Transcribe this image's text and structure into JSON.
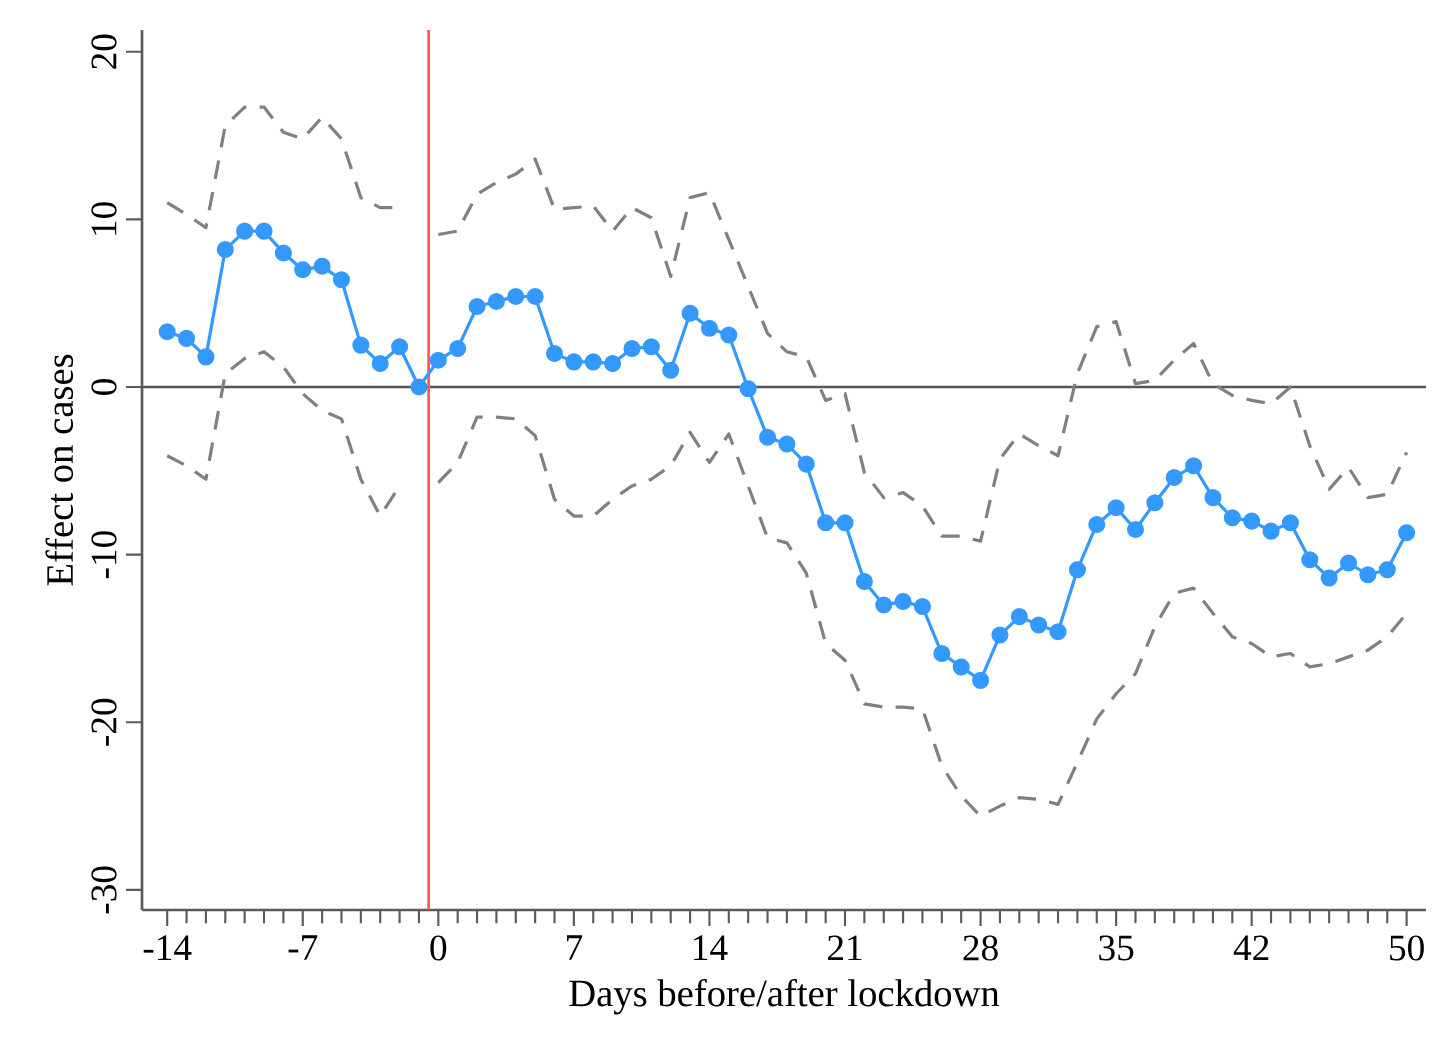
{
  "chart_data": {
    "type": "line",
    "xlabel": "Days before/after lockdown",
    "ylabel": "Effect on cases",
    "x": [
      -14,
      -13,
      -12,
      -11,
      -10,
      -9,
      -8,
      -7,
      -6,
      -5,
      -4,
      -3,
      -2,
      -1,
      0,
      1,
      2,
      3,
      4,
      5,
      6,
      7,
      8,
      9,
      10,
      11,
      12,
      13,
      14,
      15,
      16,
      17,
      18,
      19,
      20,
      21,
      22,
      23,
      24,
      25,
      26,
      27,
      28,
      29,
      30,
      31,
      32,
      33,
      34,
      35,
      36,
      37,
      38,
      39,
      40,
      41,
      42,
      43,
      44,
      45,
      46,
      47,
      48,
      49,
      50
    ],
    "series": [
      {
        "color": "#808080",
        "marker": "none",
        "line_style": "dashed",
        "values": [
          11.0,
          10.3,
          9.5,
          15.6,
          16.7,
          16.7,
          15.2,
          14.8,
          16.1,
          14.8,
          11.3,
          10.7,
          10.7,
          null,
          9.1,
          9.3,
          11.5,
          12.2,
          12.7,
          13.6,
          10.6,
          10.7,
          10.8,
          9.3,
          10.7,
          10.1,
          6.6,
          11.3,
          11.6,
          8.8,
          6.0,
          3.2,
          2.1,
          1.8,
          -0.8,
          -0.4,
          -5.1,
          -6.6,
          -6.3,
          -7.1,
          -8.9,
          -8.9,
          -9.2,
          -4.3,
          -2.8,
          -3.5,
          -4.1,
          0.8,
          3.6,
          3.9,
          0.2,
          0.4,
          1.6,
          2.6,
          0.2,
          -0.5,
          -0.8,
          -1.0,
          0.0,
          -3.5,
          -6.1,
          -4.8,
          -6.6,
          -6.4,
          -3.9
        ]
      },
      {
        "color": "#808080",
        "marker": "none",
        "line_style": "dashed",
        "values": [
          -4.1,
          -4.7,
          -5.5,
          0.8,
          1.7,
          2.1,
          1.2,
          -0.4,
          -1.4,
          -1.9,
          -5.5,
          -7.7,
          -5.9,
          null,
          -5.7,
          -4.5,
          -1.8,
          -1.8,
          -1.9,
          -2.9,
          -6.7,
          -7.7,
          -7.7,
          -6.7,
          -5.9,
          -5.5,
          -4.7,
          -2.7,
          -4.5,
          -2.8,
          -5.9,
          -9.0,
          -9.3,
          -11.1,
          -15.3,
          -16.3,
          -18.9,
          -19.1,
          -19.1,
          -19.2,
          -22.6,
          -24.4,
          -25.6,
          -25.0,
          -24.5,
          -24.6,
          -24.9,
          -22.4,
          -19.8,
          -18.3,
          -17.1,
          -14.3,
          -12.3,
          -12.0,
          -13.5,
          -14.9,
          -15.3,
          -16.1,
          -15.9,
          -16.7,
          -16.5,
          -16.1,
          -15.7,
          -14.9,
          -13.5
        ]
      },
      {
        "color": "#3399ff",
        "marker": "circle",
        "line_style": "solid",
        "values": [
          3.3,
          2.9,
          1.8,
          8.2,
          9.3,
          9.3,
          8.0,
          7.0,
          7.2,
          6.4,
          2.5,
          1.4,
          2.4,
          0,
          1.6,
          2.3,
          4.8,
          5.1,
          5.4,
          5.4,
          2.0,
          1.5,
          1.5,
          1.4,
          2.3,
          2.4,
          1.0,
          4.4,
          3.5,
          3.1,
          -0.1,
          -3.0,
          -3.4,
          -4.6,
          -8.1,
          -8.1,
          -11.6,
          -13.0,
          -12.8,
          -13.1,
          -15.9,
          -16.7,
          -17.5,
          -14.8,
          -13.7,
          -14.2,
          -14.6,
          -10.9,
          -8.2,
          -7.2,
          -8.5,
          -6.9,
          -5.4,
          -4.7,
          -6.6,
          -7.8,
          -8.0,
          -8.6,
          -8.1,
          -10.3,
          -11.4,
          -10.5,
          -11.2,
          -10.9,
          -8.7
        ]
      }
    ],
    "xlim": [
      -15.3,
      51
    ],
    "xticks": [
      -14,
      {
        "value": -13,
        "label": null
      },
      {
        "value": -12,
        "label": null
      },
      {
        "value": -11,
        "label": null
      },
      {
        "value": -10,
        "label": null
      },
      {
        "value": -9,
        "label": null
      },
      {
        "value": -8,
        "label": null
      },
      -7,
      {
        "value": -6,
        "label": null
      },
      {
        "value": -5,
        "label": null
      },
      {
        "value": -4,
        "label": null
      },
      {
        "value": -3,
        "label": null
      },
      {
        "value": -2,
        "label": null
      },
      {
        "value": -1,
        "label": null
      },
      0,
      {
        "value": 1,
        "label": null
      },
      {
        "value": 2,
        "label": null
      },
      {
        "value": 3,
        "label": null
      },
      {
        "value": 4,
        "label": null
      },
      {
        "value": 5,
        "label": null
      },
      {
        "value": 6,
        "label": null
      },
      7,
      {
        "value": 8,
        "label": null
      },
      {
        "value": 9,
        "label": null
      },
      {
        "value": 10,
        "label": null
      },
      {
        "value": 11,
        "label": null
      },
      {
        "value": 12,
        "label": null
      },
      {
        "value": 13,
        "label": null
      },
      14,
      {
        "value": 15,
        "label": null
      },
      {
        "value": 16,
        "label": null
      },
      {
        "value": 17,
        "label": null
      },
      {
        "value": 18,
        "label": null
      },
      {
        "value": 19,
        "label": null
      },
      {
        "value": 20,
        "label": null
      },
      21,
      {
        "value": 22,
        "label": null
      },
      {
        "value": 23,
        "label": null
      },
      {
        "value": 24,
        "label": null
      },
      {
        "value": 25,
        "label": null
      },
      {
        "value": 26,
        "label": null
      },
      {
        "value": 27,
        "label": null
      },
      28,
      {
        "value": 29,
        "label": null
      },
      {
        "value": 30,
        "label": null
      },
      {
        "value": 31,
        "label": null
      },
      {
        "value": 32,
        "label": null
      },
      {
        "value": 33,
        "label": null
      },
      {
        "value": 34,
        "label": null
      },
      35,
      {
        "value": 36,
        "label": null
      },
      {
        "value": 37,
        "label": null
      },
      {
        "value": 38,
        "label": null
      },
      {
        "value": 39,
        "label": null
      },
      {
        "value": 40,
        "label": null
      },
      {
        "value": 41,
        "label": null
      },
      42,
      {
        "value": 43,
        "label": null
      },
      {
        "value": 44,
        "label": null
      },
      {
        "value": 45,
        "label": null
      },
      {
        "value": 46,
        "label": null
      },
      {
        "value": 47,
        "label": null
      },
      {
        "value": 48,
        "label": null
      },
      {
        "value": 49,
        "label": null
      },
      50
    ],
    "ylim": [
      -31.2,
      21.3
    ],
    "yticks": [
      -30,
      -20,
      -10,
      0,
      10,
      20
    ],
    "ref_lines": [
      {
        "axis": "y",
        "value": 0,
        "color": "#555555",
        "line_style": "solid"
      },
      {
        "axis": "x",
        "value": -0.5,
        "color": "#ff5555",
        "line_style": "solid"
      }
    ]
  }
}
